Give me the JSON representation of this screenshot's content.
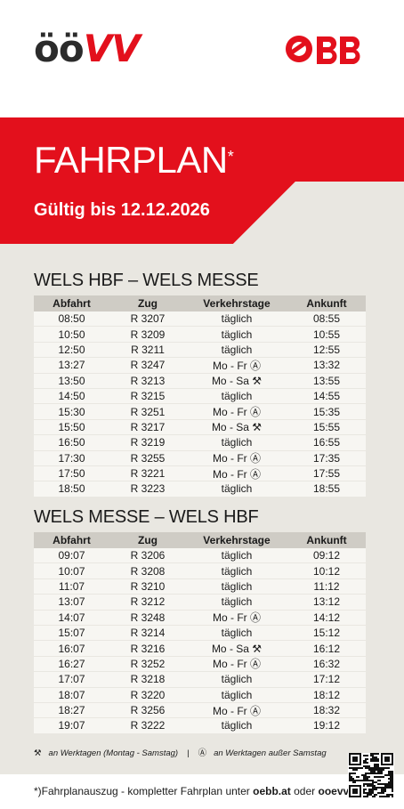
{
  "header": {
    "oovv_logo": "ÖÖVV",
    "oovv_part1": "öö",
    "oovv_part2": "VV",
    "obb_logo": "ÖBB",
    "brand_red": "#e3101c"
  },
  "banner": {
    "title": "FAHRPLAN",
    "title_mark": "*",
    "validity": "Gültig bis 12.12.2026"
  },
  "columns": [
    "Abfahrt",
    "Zug",
    "Verkehrstage",
    "Ankunft"
  ],
  "timetable_1": {
    "title": "WELS HBF – WELS MESSE",
    "rows": [
      [
        "08:50",
        "R 3207",
        "täglich",
        "08:55"
      ],
      [
        "10:50",
        "R 3209",
        "täglich",
        "10:55"
      ],
      [
        "12:50",
        "R 3211",
        "täglich",
        "12:55"
      ],
      [
        "13:27",
        "R 3247",
        "Mo - Fr Ⓐ",
        "13:32"
      ],
      [
        "13:50",
        "R 3213",
        "Mo - Sa ⚒",
        "13:55"
      ],
      [
        "14:50",
        "R 3215",
        "täglich",
        "14:55"
      ],
      [
        "15:30",
        "R 3251",
        "Mo - Fr Ⓐ",
        "15:35"
      ],
      [
        "15:50",
        "R 3217",
        "Mo - Sa ⚒",
        "15:55"
      ],
      [
        "16:50",
        "R 3219",
        "täglich",
        "16:55"
      ],
      [
        "17:30",
        "R 3255",
        "Mo - Fr Ⓐ",
        "17:35"
      ],
      [
        "17:50",
        "R 3221",
        "Mo - Fr Ⓐ",
        "17:55"
      ],
      [
        "18:50",
        "R 3223",
        "täglich",
        "18:55"
      ]
    ]
  },
  "timetable_2": {
    "title": "WELS MESSE – WELS HBF",
    "rows": [
      [
        "09:07",
        "R 3206",
        "täglich",
        "09:12"
      ],
      [
        "10:07",
        "R 3208",
        "täglich",
        "10:12"
      ],
      [
        "11:07",
        "R 3210",
        "täglich",
        "11:12"
      ],
      [
        "13:07",
        "R 3212",
        "täglich",
        "13:12"
      ],
      [
        "14:07",
        "R 3248",
        "Mo - Fr Ⓐ",
        "14:12"
      ],
      [
        "15:07",
        "R 3214",
        "täglich",
        "15:12"
      ],
      [
        "16:07",
        "R 3216",
        "Mo - Sa ⚒",
        "16:12"
      ],
      [
        "16:27",
        "R 3252",
        "Mo - Fr Ⓐ",
        "16:32"
      ],
      [
        "17:07",
        "R 3218",
        "täglich",
        "17:12"
      ],
      [
        "18:07",
        "R 3220",
        "täglich",
        "18:12"
      ],
      [
        "18:27",
        "R 3256",
        "Mo - Fr Ⓐ",
        "18:32"
      ],
      [
        "19:07",
        "R 3222",
        "täglich",
        "19:12"
      ]
    ]
  },
  "legend": {
    "sym1": "⚒",
    "text1": "an Werktagen (Montag - Samstag)",
    "separator": "|",
    "sym2": "Ⓐ",
    "text2": "an Werktagen außer Samstag"
  },
  "footer": {
    "prefix": "*)Fahrplanauszug - kompletter Fahrplan unter ",
    "link1": "oebb.at",
    "middle": " oder ",
    "link2": "ooevv.at"
  }
}
